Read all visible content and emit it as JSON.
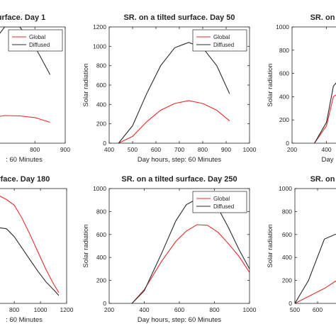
{
  "colors": {
    "global": "#e8292b",
    "diffused": "#2a2a2a",
    "axis": "#262626"
  },
  "chart_data": [
    {
      "type": "line",
      "title": "urface. Day 1",
      "xlabel": ": 60 Minutes",
      "ylabel": "",
      "xlim": [
        680,
        900
      ],
      "ylim": [
        0,
        1000
      ],
      "xticks": [
        "800",
        "900"
      ],
      "xtick_values": [
        800,
        900
      ],
      "yticks": [],
      "ytick_values": [],
      "legend": "top-right",
      "series": [
        {
          "name": "Global",
          "color_key": "global",
          "x": [
            680,
            700,
            750,
            800,
            850
          ],
          "y": [
            230,
            238,
            235,
            220,
            180
          ]
        },
        {
          "name": "Diffused",
          "color_key": "diffused",
          "x": [
            680,
            700,
            750,
            800,
            850
          ],
          "y": [
            930,
            1000,
            1000,
            830,
            590
          ]
        }
      ]
    },
    {
      "type": "line",
      "title": "SR. on a tilted surface. Day 50",
      "xlabel": "Day hours, step: 60 Minutes",
      "ylabel": "Solar radiation",
      "xlim": [
        400,
        1000
      ],
      "ylim": [
        0,
        1200
      ],
      "xticks": [
        "400",
        "500",
        "600",
        "700",
        "800",
        "900",
        "1000"
      ],
      "xtick_values": [
        400,
        500,
        600,
        700,
        800,
        900,
        1000
      ],
      "yticks": [
        "0",
        "200",
        "400",
        "600",
        "800",
        "1000",
        "1200"
      ],
      "ytick_values": [
        0,
        200,
        400,
        600,
        800,
        1000,
        1200
      ],
      "legend": "top-right",
      "series": [
        {
          "name": "Global",
          "color_key": "global",
          "x": [
            440,
            500,
            560,
            620,
            680,
            740,
            800,
            860,
            915
          ],
          "y": [
            0,
            70,
            220,
            340,
            410,
            440,
            410,
            340,
            230
          ]
        },
        {
          "name": "Diffused",
          "color_key": "diffused",
          "x": [
            440,
            500,
            560,
            620,
            680,
            740,
            800,
            860,
            915
          ],
          "y": [
            0,
            180,
            510,
            800,
            985,
            1040,
            985,
            800,
            510
          ]
        }
      ]
    },
    {
      "type": "line",
      "title": "SR. on",
      "xlabel": "Day",
      "ylabel": "Solar radiation",
      "xlim": [
        200,
        480
      ],
      "ylim": [
        0,
        1000
      ],
      "xticks": [
        "200",
        "400"
      ],
      "xtick_values": [
        200,
        400
      ],
      "yticks": [
        "0",
        "200",
        "400",
        "600",
        "800",
        "1000"
      ],
      "ytick_values": [
        0,
        200,
        400,
        600,
        800,
        1000
      ],
      "legend": "none",
      "series": [
        {
          "name": "Global",
          "color_key": "global",
          "x": [
            330,
            400,
            440,
            480
          ],
          "y": [
            0,
            150,
            400,
            440
          ]
        },
        {
          "name": "Diffused",
          "color_key": "diffused",
          "x": [
            330,
            400,
            440,
            480
          ],
          "y": [
            0,
            180,
            490,
            560
          ]
        }
      ]
    },
    {
      "type": "line",
      "title": "urface. Day 180",
      "xlabel": ": 60 Minutes",
      "ylabel": "",
      "xlim": [
        680,
        1200
      ],
      "ylim": [
        0,
        1000
      ],
      "xticks": [
        "800",
        "1000",
        "1200"
      ],
      "xtick_values": [
        800,
        1000,
        1200
      ],
      "yticks": [],
      "ytick_values": [],
      "legend": "none",
      "series": [
        {
          "name": "Global",
          "color_key": "global",
          "x": [
            680,
            740,
            800,
            860,
            920,
            980,
            1040,
            1100,
            1140
          ],
          "y": [
            940,
            905,
            855,
            740,
            600,
            450,
            300,
            170,
            95
          ]
        },
        {
          "name": "Diffused",
          "color_key": "diffused",
          "x": [
            680,
            740,
            800,
            860,
            920,
            980,
            1040,
            1100,
            1140
          ],
          "y": [
            660,
            650,
            580,
            480,
            380,
            280,
            190,
            120,
            70
          ]
        }
      ]
    },
    {
      "type": "line",
      "title": "SR. on a tilted surface. Day 250",
      "xlabel": "Day hours, step: 60 Minutes",
      "ylabel": "Solar radiation",
      "xlim": [
        200,
        1000
      ],
      "ylim": [
        0,
        1000
      ],
      "xticks": [
        "200",
        "400",
        "600",
        "800",
        "1000"
      ],
      "xtick_values": [
        200,
        400,
        600,
        800,
        1000
      ],
      "yticks": [
        "0",
        "200",
        "400",
        "600",
        "800",
        "1000"
      ],
      "ytick_values": [
        0,
        200,
        400,
        600,
        800,
        1000
      ],
      "legend": "top-right",
      "series": [
        {
          "name": "Global",
          "color_key": "global",
          "x": [
            330,
            400,
            500,
            580,
            640,
            700,
            760,
            820,
            880,
            940,
            1000
          ],
          "y": [
            0,
            120,
            370,
            540,
            630,
            685,
            680,
            620,
            520,
            410,
            270
          ]
        },
        {
          "name": "Diffused",
          "color_key": "diffused",
          "x": [
            330,
            400,
            500,
            580,
            640,
            700,
            760,
            820,
            880,
            940,
            1000
          ],
          "y": [
            0,
            110,
            440,
            720,
            860,
            910,
            910,
            830,
            660,
            470,
            300
          ]
        }
      ]
    },
    {
      "type": "line",
      "title": "SR. on",
      "xlabel": "",
      "ylabel": "Solar radiation",
      "xlim": [
        500,
        700
      ],
      "ylim": [
        0,
        1000
      ],
      "xticks": [
        "500",
        "600"
      ],
      "xtick_values": [
        500,
        600
      ],
      "yticks": [
        "0",
        "200",
        "400",
        "600",
        "800",
        "1000"
      ],
      "ytick_values": [
        0,
        200,
        400,
        600,
        800,
        1000
      ],
      "legend": "none",
      "series": [
        {
          "name": "Global",
          "color_key": "global",
          "x": [
            500,
            560,
            630,
            700
          ],
          "y": [
            0,
            60,
            130,
            220
          ]
        },
        {
          "name": "Diffused",
          "color_key": "diffused",
          "x": [
            500,
            560,
            630,
            700
          ],
          "y": [
            0,
            200,
            560,
            620
          ]
        }
      ]
    }
  ]
}
